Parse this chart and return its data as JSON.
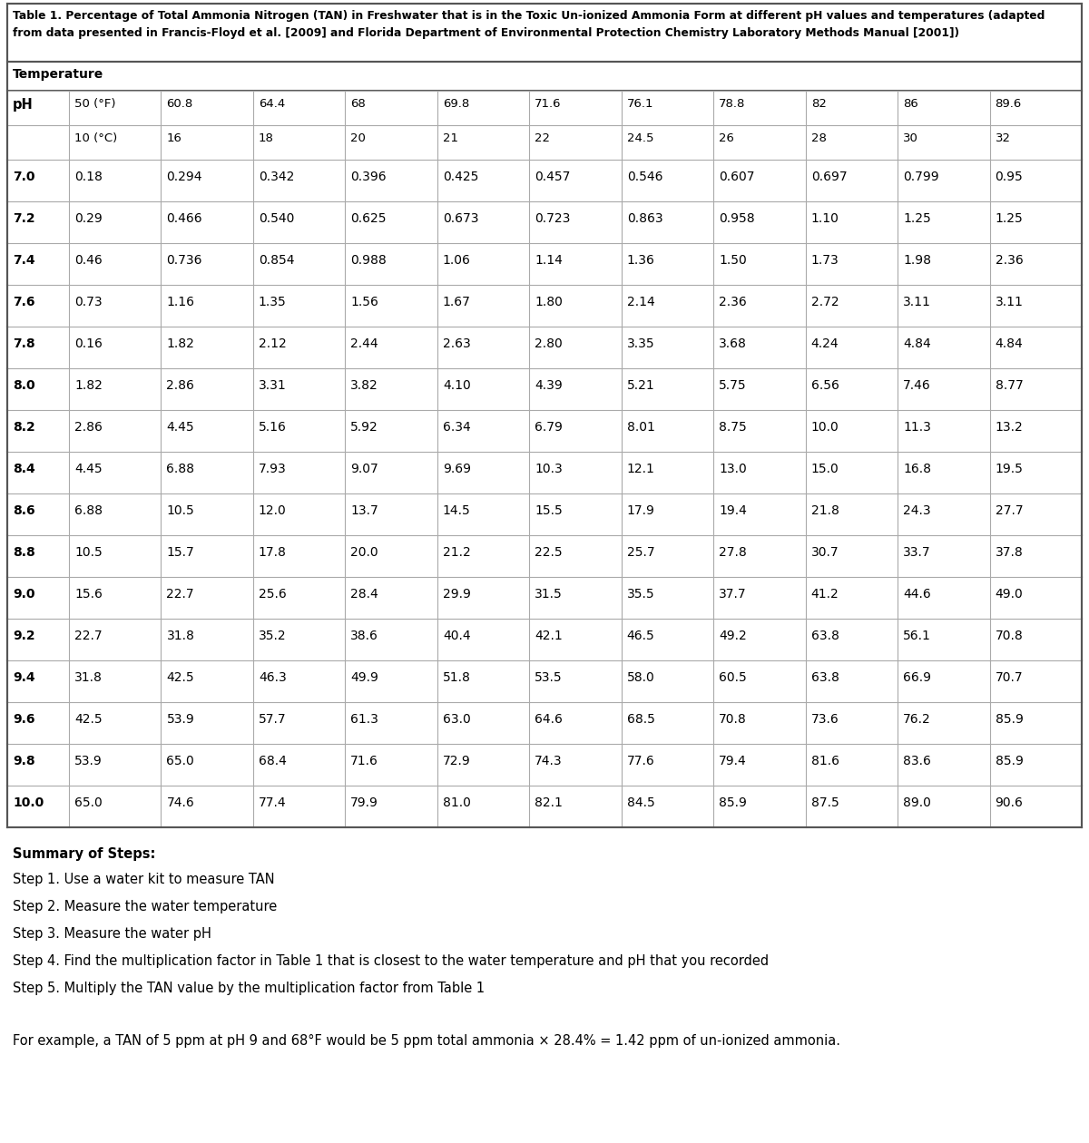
{
  "title_line1": "Table 1. Percentage of Total Ammonia Nitrogen (TAN) in Freshwater that is in the Toxic Un-ionized Ammonia Form at different pH values and temperatures (adapted",
  "title_line2": "from data presented in Francis-Floyd et al. [2009] and Florida Department of Environmental Protection Chemistry Laboratory Methods Manual [2001])",
  "temp_label": "Temperature",
  "ph_label": "pH",
  "temp_f": [
    "50 (°F)",
    "60.8",
    "64.4",
    "68",
    "69.8",
    "71.6",
    "76.1",
    "78.8",
    "82",
    "86",
    "89.6"
  ],
  "temp_c": [
    "10 (°C)",
    "16",
    "18",
    "20",
    "21",
    "22",
    "24.5",
    "26",
    "28",
    "30",
    "32"
  ],
  "ph_values": [
    "7.0",
    "7.2",
    "7.4",
    "7.6",
    "7.8",
    "8.0",
    "8.2",
    "8.4",
    "8.6",
    "8.8",
    "9.0",
    "9.2",
    "9.4",
    "9.6",
    "9.8",
    "10.0"
  ],
  "table_data": [
    [
      "0.18",
      "0.294",
      "0.342",
      "0.396",
      "0.425",
      "0.457",
      "0.546",
      "0.607",
      "0.697",
      "0.799",
      "0.95"
    ],
    [
      "0.29",
      "0.466",
      "0.540",
      "0.625",
      "0.673",
      "0.723",
      "0.863",
      "0.958",
      "1.10",
      "1.25",
      "1.25"
    ],
    [
      "0.46",
      "0.736",
      "0.854",
      "0.988",
      "1.06",
      "1.14",
      "1.36",
      "1.50",
      "1.73",
      "1.98",
      "2.36"
    ],
    [
      "0.73",
      "1.16",
      "1.35",
      "1.56",
      "1.67",
      "1.80",
      "2.14",
      "2.36",
      "2.72",
      "3.11",
      "3.11"
    ],
    [
      "0.16",
      "1.82",
      "2.12",
      "2.44",
      "2.63",
      "2.80",
      "3.35",
      "3.68",
      "4.24",
      "4.84",
      "4.84"
    ],
    [
      "1.82",
      "2.86",
      "3.31",
      "3.82",
      "4.10",
      "4.39",
      "5.21",
      "5.75",
      "6.56",
      "7.46",
      "8.77"
    ],
    [
      "2.86",
      "4.45",
      "5.16",
      "5.92",
      "6.34",
      "6.79",
      "8.01",
      "8.75",
      "10.0",
      "11.3",
      "13.2"
    ],
    [
      "4.45",
      "6.88",
      "7.93",
      "9.07",
      "9.69",
      "10.3",
      "12.1",
      "13.0",
      "15.0",
      "16.8",
      "19.5"
    ],
    [
      "6.88",
      "10.5",
      "12.0",
      "13.7",
      "14.5",
      "15.5",
      "17.9",
      "19.4",
      "21.8",
      "24.3",
      "27.7"
    ],
    [
      "10.5",
      "15.7",
      "17.8",
      "20.0",
      "21.2",
      "22.5",
      "25.7",
      "27.8",
      "30.7",
      "33.7",
      "37.8"
    ],
    [
      "15.6",
      "22.7",
      "25.6",
      "28.4",
      "29.9",
      "31.5",
      "35.5",
      "37.7",
      "41.2",
      "44.6",
      "49.0"
    ],
    [
      "22.7",
      "31.8",
      "35.2",
      "38.6",
      "40.4",
      "42.1",
      "46.5",
      "49.2",
      "63.8",
      "56.1",
      "70.8"
    ],
    [
      "31.8",
      "42.5",
      "46.3",
      "49.9",
      "51.8",
      "53.5",
      "58.0",
      "60.5",
      "63.8",
      "66.9",
      "70.7"
    ],
    [
      "42.5",
      "53.9",
      "57.7",
      "61.3",
      "63.0",
      "64.6",
      "68.5",
      "70.8",
      "73.6",
      "76.2",
      "85.9"
    ],
    [
      "53.9",
      "65.0",
      "68.4",
      "71.6",
      "72.9",
      "74.3",
      "77.6",
      "79.4",
      "81.6",
      "83.6",
      "85.9"
    ],
    [
      "65.0",
      "74.6",
      "77.4",
      "79.9",
      "81.0",
      "82.1",
      "84.5",
      "85.9",
      "87.5",
      "89.0",
      "90.6"
    ]
  ],
  "summary_title": "Summary of Steps:",
  "steps": [
    "Step 1. Use a water kit to measure TAN",
    "Step 2. Measure the water temperature",
    "Step 3. Measure the water pH",
    "Step 4. Find the multiplication factor in Table 1 that is closest to the water temperature and pH that you recorded",
    "Step 5. Multiply the TAN value by the multiplication factor from Table 1"
  ],
  "example_text": "For example, a TAN of 5 ppm at pH 9 and 68°F would be 5 ppm total ammonia × 28.4% = 1.42 ppm of un-ionized ammonia.",
  "bg_color": "#ffffff",
  "text_color": "#000000",
  "grid_color": "#aaaaaa",
  "outer_border_color": "#555555"
}
